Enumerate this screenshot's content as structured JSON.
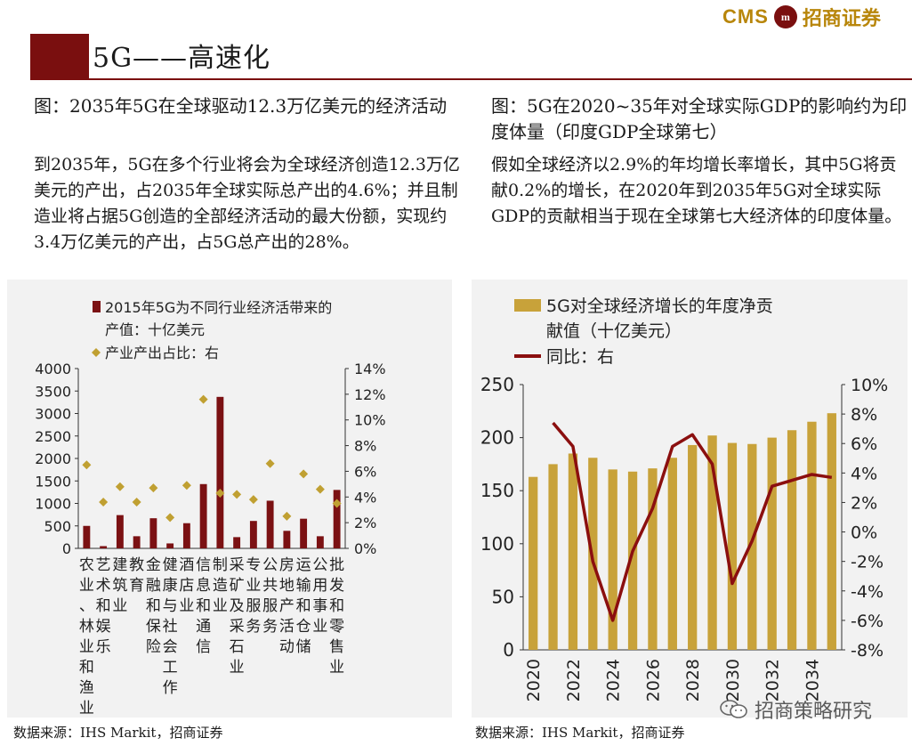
{
  "header": {
    "title": "5G——高速化",
    "logo_text": "CMS",
    "logo_mark": "m",
    "logo_cn": "招商证券",
    "accent_color": "#7a0f0f",
    "logo_color": "#b8860b"
  },
  "left_panel": {
    "figure_title": "图：2035年5G在全球驱动12.3万亿美元的经济活动",
    "description": "到2035年，5G在多个行业将会为全球经济创造12.3万亿美元的产出，占2035年全球实际总产出的4.6%；并且制造业将占据5G创造的全部经济活动的最大份额，实现约3.4万亿美元的产出，占5G总产出的28%。",
    "source": "数据来源：IHS Markit，招商证券"
  },
  "right_panel": {
    "figure_title": "图：5G在2020~35年对全球实际GDP的影响约为印度体量（印度GDP全球第七）",
    "description": "假如全球经济以2.9%的年均增长率增长，其中5G将贡献0.2%的增长，在2020年到2035年5G对全球实际GDP的贡献相当于现在全球第七大经济体的印度体量。",
    "source": "数据来源：IHS Markit，招商证券"
  },
  "watermark": {
    "text": "招商策略研究",
    "icon": "wechat-icon"
  },
  "chart_data": [
    {
      "type": "bar",
      "legend": [
        {
          "name": "2015年5G为不同行业经济活带来的产值：十亿美元",
          "marker": "bar"
        },
        {
          "name": "产业产出占比：右",
          "marker": "diamond"
        }
      ],
      "categories": [
        "农业、林业和渔业",
        "艺术和娱乐",
        "建筑业",
        "教育",
        "金融和保险",
        "健康与社会工作",
        "酒店业",
        "信息和通信",
        "制造业",
        "采矿及采石业",
        "专业服务",
        "公共服务",
        "房地产活动",
        "运输和仓储",
        "公用事业",
        "批发和零售业"
      ],
      "category_lines": [
        [
          "农",
          "业",
          "、",
          "林",
          "业",
          "和",
          "渔",
          "业"
        ],
        [
          "艺",
          "术",
          "和",
          "娱",
          "乐"
        ],
        [
          "建",
          "筑",
          "业"
        ],
        [
          "教",
          "育"
        ],
        [
          "金",
          "融",
          "和",
          "保",
          "险"
        ],
        [
          "健",
          "康",
          "与",
          "社",
          "会",
          "工",
          "作"
        ],
        [
          "酒",
          "店",
          "业"
        ],
        [
          "信",
          "息",
          "和",
          "通",
          "信"
        ],
        [
          "制",
          "造",
          "业"
        ],
        [
          "采",
          "矿",
          "及",
          "采",
          "石",
          "业"
        ],
        [
          "专",
          "业",
          "服",
          "务"
        ],
        [
          "公",
          "共",
          "服",
          "务"
        ],
        [
          "房",
          "地",
          "产",
          "活",
          "动"
        ],
        [
          "运",
          "输",
          "和",
          "仓",
          "储"
        ],
        [
          "公",
          "用",
          "事",
          "业"
        ],
        [
          "批",
          "发",
          "和",
          "零",
          "售",
          "业"
        ]
      ],
      "series": [
        {
          "name": "2015年5G为不同行业经济活带来的产值：十亿美元",
          "axis": "left",
          "values": [
            500,
            50,
            740,
            270,
            670,
            110,
            560,
            1430,
            3370,
            250,
            610,
            1060,
            390,
            660,
            270,
            1300
          ]
        },
        {
          "name": "产业产出占比：右",
          "axis": "right",
          "values": [
            6.5,
            3.6,
            4.8,
            3.6,
            4.7,
            2.4,
            4.9,
            11.6,
            4.3,
            4.2,
            3.8,
            6.6,
            2.5,
            5.8,
            4.6,
            3.5
          ]
        }
      ],
      "y_left": {
        "min": 0,
        "max": 4000,
        "ticks": [
          "0",
          "500",
          "1000",
          "1500",
          "2000",
          "2500",
          "3000",
          "3500",
          "4000"
        ]
      },
      "y_right": {
        "min": 0,
        "max": 14,
        "ticks": [
          "0%",
          "2%",
          "4%",
          "6%",
          "8%",
          "10%",
          "12%",
          "14%"
        ]
      },
      "colors": {
        "bar": "#7b1113",
        "marker": "#c0a032"
      },
      "legend_position": "top-left",
      "grid": false
    },
    {
      "type": "bar",
      "legend": [
        {
          "name": "5G对全球经济增长的年度净贡献值（十亿美元）",
          "marker": "bar"
        },
        {
          "name": "同比：右",
          "marker": "line"
        }
      ],
      "x": [
        2020,
        2021,
        2022,
        2023,
        2024,
        2025,
        2026,
        2027,
        2028,
        2029,
        2030,
        2031,
        2032,
        2033,
        2034,
        2035
      ],
      "x_tick_labels": [
        "2020",
        "2022",
        "2024",
        "2026",
        "2028",
        "2030",
        "2032",
        "2034"
      ],
      "series": [
        {
          "name": "5G对全球经济增长的年度净贡献值（十亿美元）",
          "axis": "left",
          "values": [
            163,
            175,
            185,
            181,
            170,
            168,
            171,
            181,
            193,
            202,
            195,
            194,
            200,
            207,
            215,
            223
          ]
        },
        {
          "name": "同比：右",
          "axis": "right",
          "values": [
            null,
            7.4,
            5.8,
            -2.0,
            -6.0,
            -1.3,
            1.6,
            5.8,
            6.6,
            4.6,
            -3.5,
            -0.6,
            3.1,
            3.5,
            3.9,
            3.7
          ]
        }
      ],
      "y_left": {
        "min": 0,
        "max": 250,
        "ticks": [
          "0",
          "50",
          "100",
          "150",
          "200",
          "250"
        ]
      },
      "y_right": {
        "min": -8,
        "max": 10,
        "ticks": [
          "-8%",
          "-6%",
          "-4%",
          "-2%",
          "0%",
          "2%",
          "4%",
          "6%",
          "8%",
          "10%"
        ]
      },
      "colors": {
        "bar": "#c8a23a",
        "line": "#8b0f0f"
      },
      "legend_position": "top-left",
      "grid": false
    }
  ]
}
